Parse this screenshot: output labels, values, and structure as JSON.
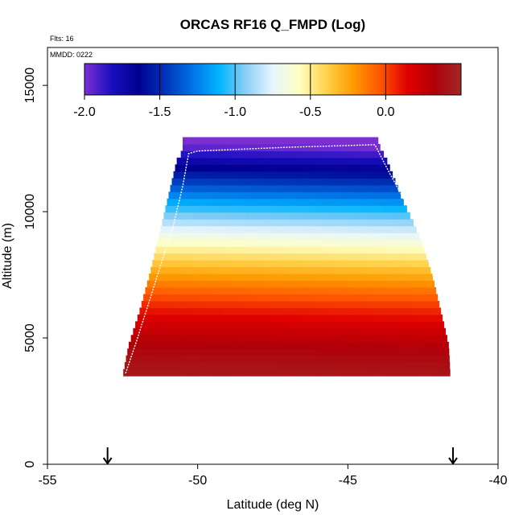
{
  "chart_data": {
    "type": "heatmap",
    "title": "ORCAS RF16 Q_FMPD (Log)",
    "annotations": {
      "flights": "Flts: 16",
      "mmdd": "MMDD: 0222"
    },
    "xlabel": "Latitude (deg N)",
    "ylabel": "Altitude (m)",
    "xlim": [
      -55,
      -40
    ],
    "ylim": [
      0,
      16500
    ],
    "x_ticks": [
      -55,
      -50,
      -45,
      -40
    ],
    "x_tick_labels": [
      "-55",
      "-50",
      "-45",
      "-40"
    ],
    "y_ticks": [
      0,
      5000,
      10000,
      15000
    ],
    "y_tick_labels": [
      "0",
      "5000",
      "10000",
      "15000"
    ],
    "colorbar": {
      "range": [
        -2.0,
        0.5
      ],
      "ticks": [
        -2.0,
        -1.5,
        -1.0,
        -0.5,
        0.0
      ],
      "tick_labels": [
        "-2.0",
        "-1.5",
        "-1.0",
        "-0.5",
        "0.0"
      ],
      "colors": [
        "#7b2fd3",
        "#1a0fc0",
        "#00008f",
        "#0034b8",
        "#0072e6",
        "#00b4ff",
        "#8ccff5",
        "#e8f6ff",
        "#ffffc0",
        "#ffd24a",
        "#ff9a00",
        "#ff5500",
        "#e00000",
        "#b00008",
        "#a02828"
      ]
    },
    "field": {
      "bottom_altitude": 3500,
      "top_altitude": 12700,
      "surface_value": 0.42,
      "cell_lat_width": 0.25,
      "cell_alt_height": 270,
      "value_at_10000m_at_-50": -1.0,
      "top_value": -2.0,
      "lat_tilt_per_deg": 0.035,
      "profile_left": [
        [
          3500,
          -52.5
        ],
        [
          4700,
          -52.3
        ],
        [
          6000,
          -51.95
        ],
        [
          7500,
          -51.6
        ],
        [
          9000,
          -51.3
        ],
        [
          10500,
          -51.0
        ],
        [
          12000,
          -50.7
        ],
        [
          12400,
          -50.5
        ]
      ],
      "profile_right": [
        [
          3500,
          -41.6
        ],
        [
          4700,
          -41.65
        ],
        [
          6000,
          -41.9
        ],
        [
          7500,
          -42.2
        ],
        [
          9000,
          -42.6
        ],
        [
          10500,
          -43.2
        ],
        [
          12000,
          -43.7
        ],
        [
          12700,
          -44.0
        ]
      ],
      "top_right_altitude": 12700,
      "top_left_altitude": 12400
    },
    "flight_track": [
      [
        -52.4,
        3600
      ],
      [
        -52.0,
        5000
      ],
      [
        -51.6,
        6500
      ],
      [
        -51.2,
        8000
      ],
      [
        -50.8,
        9500
      ],
      [
        -50.5,
        11000
      ],
      [
        -50.3,
        12300
      ],
      [
        -50.0,
        12400
      ],
      [
        -47.0,
        12550
      ],
      [
        -44.1,
        12650
      ],
      [
        -43.6,
        11500
      ],
      [
        -42.9,
        10000
      ],
      [
        -42.3,
        8000
      ],
      [
        -41.8,
        6000
      ],
      [
        -41.4,
        4500
      ],
      [
        -41.3,
        3700
      ]
    ],
    "arrow_markers": [
      -53.0,
      -41.5
    ]
  }
}
